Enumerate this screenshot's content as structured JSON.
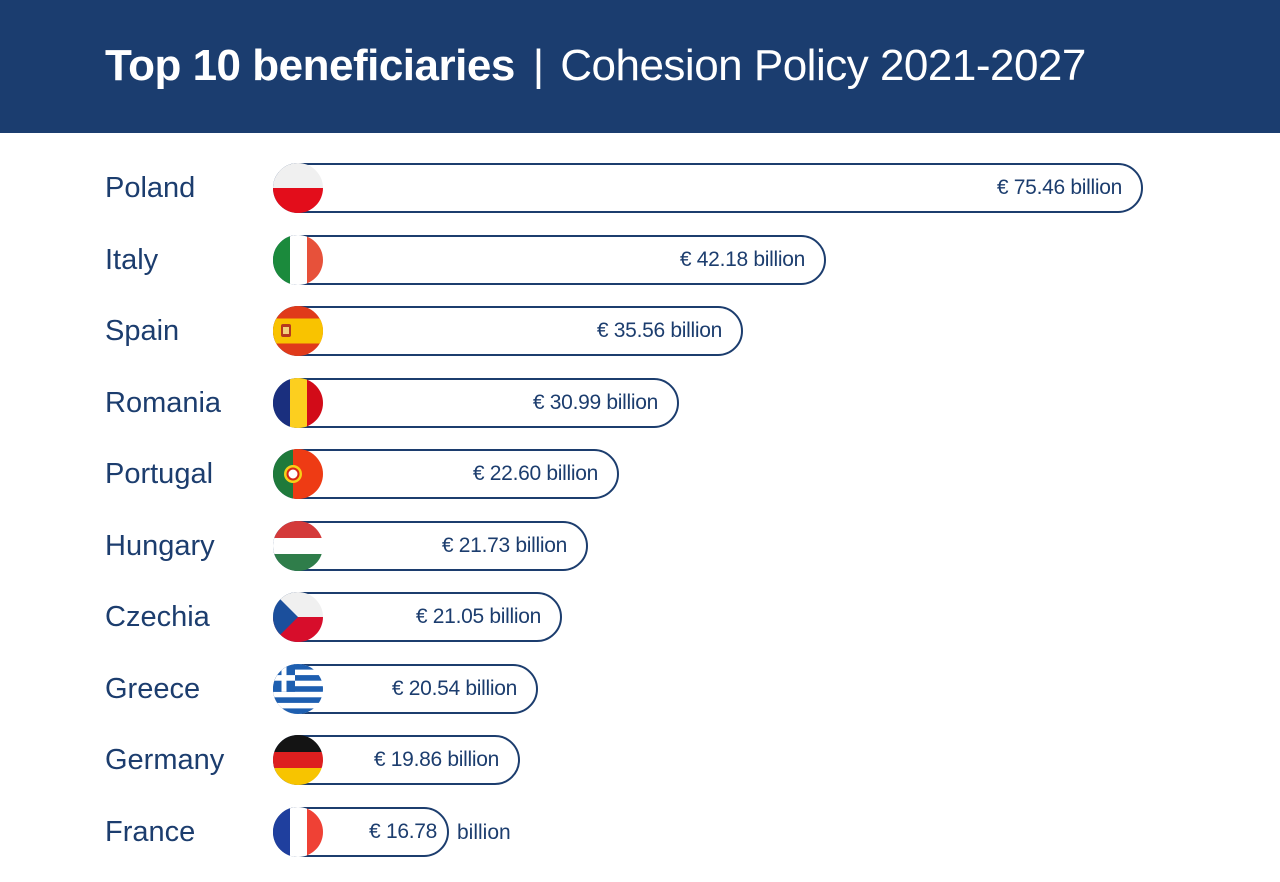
{
  "header": {
    "title_main": "Top 10 beneficiaries",
    "separator": "|",
    "title_sub": "Cohesion Policy 2021-2027"
  },
  "colors": {
    "header_background": "#1b3d6f",
    "bar_outline": "#1c3d6e",
    "text": "#1c3d6e"
  },
  "chart_data": {
    "type": "bar",
    "orientation": "horizontal",
    "title": "Top 10 beneficiaries | Cohesion Policy 2021-2027",
    "currency": "€",
    "unit": "billion",
    "categories": [
      "Poland",
      "Italy",
      "Spain",
      "Romania",
      "Portugal",
      "Hungary",
      "Czechia",
      "Greece",
      "Germany",
      "France"
    ],
    "values": [
      75.46,
      42.18,
      35.56,
      30.99,
      22.6,
      21.73,
      21.05,
      20.54,
      19.86,
      16.78
    ],
    "value_labels": [
      "€ 75.46 billion",
      "€ 42.18 billion",
      "€ 35.56 billion",
      "€ 30.99 billion",
      "€ 22.60 billion",
      "€ 21.73 billion",
      "€ 21.05 billion",
      "€ 20.54 billion",
      "€ 19.86 billion",
      "€ 16.78"
    ],
    "overflow_unit_label": "billion",
    "flag_icons": [
      "poland-flag-icon",
      "italy-flag-icon",
      "spain-flag-icon",
      "romania-flag-icon",
      "portugal-flag-icon",
      "hungary-flag-icon",
      "czechia-flag-icon",
      "greece-flag-icon",
      "germany-flag-icon",
      "france-flag-icon"
    ]
  }
}
